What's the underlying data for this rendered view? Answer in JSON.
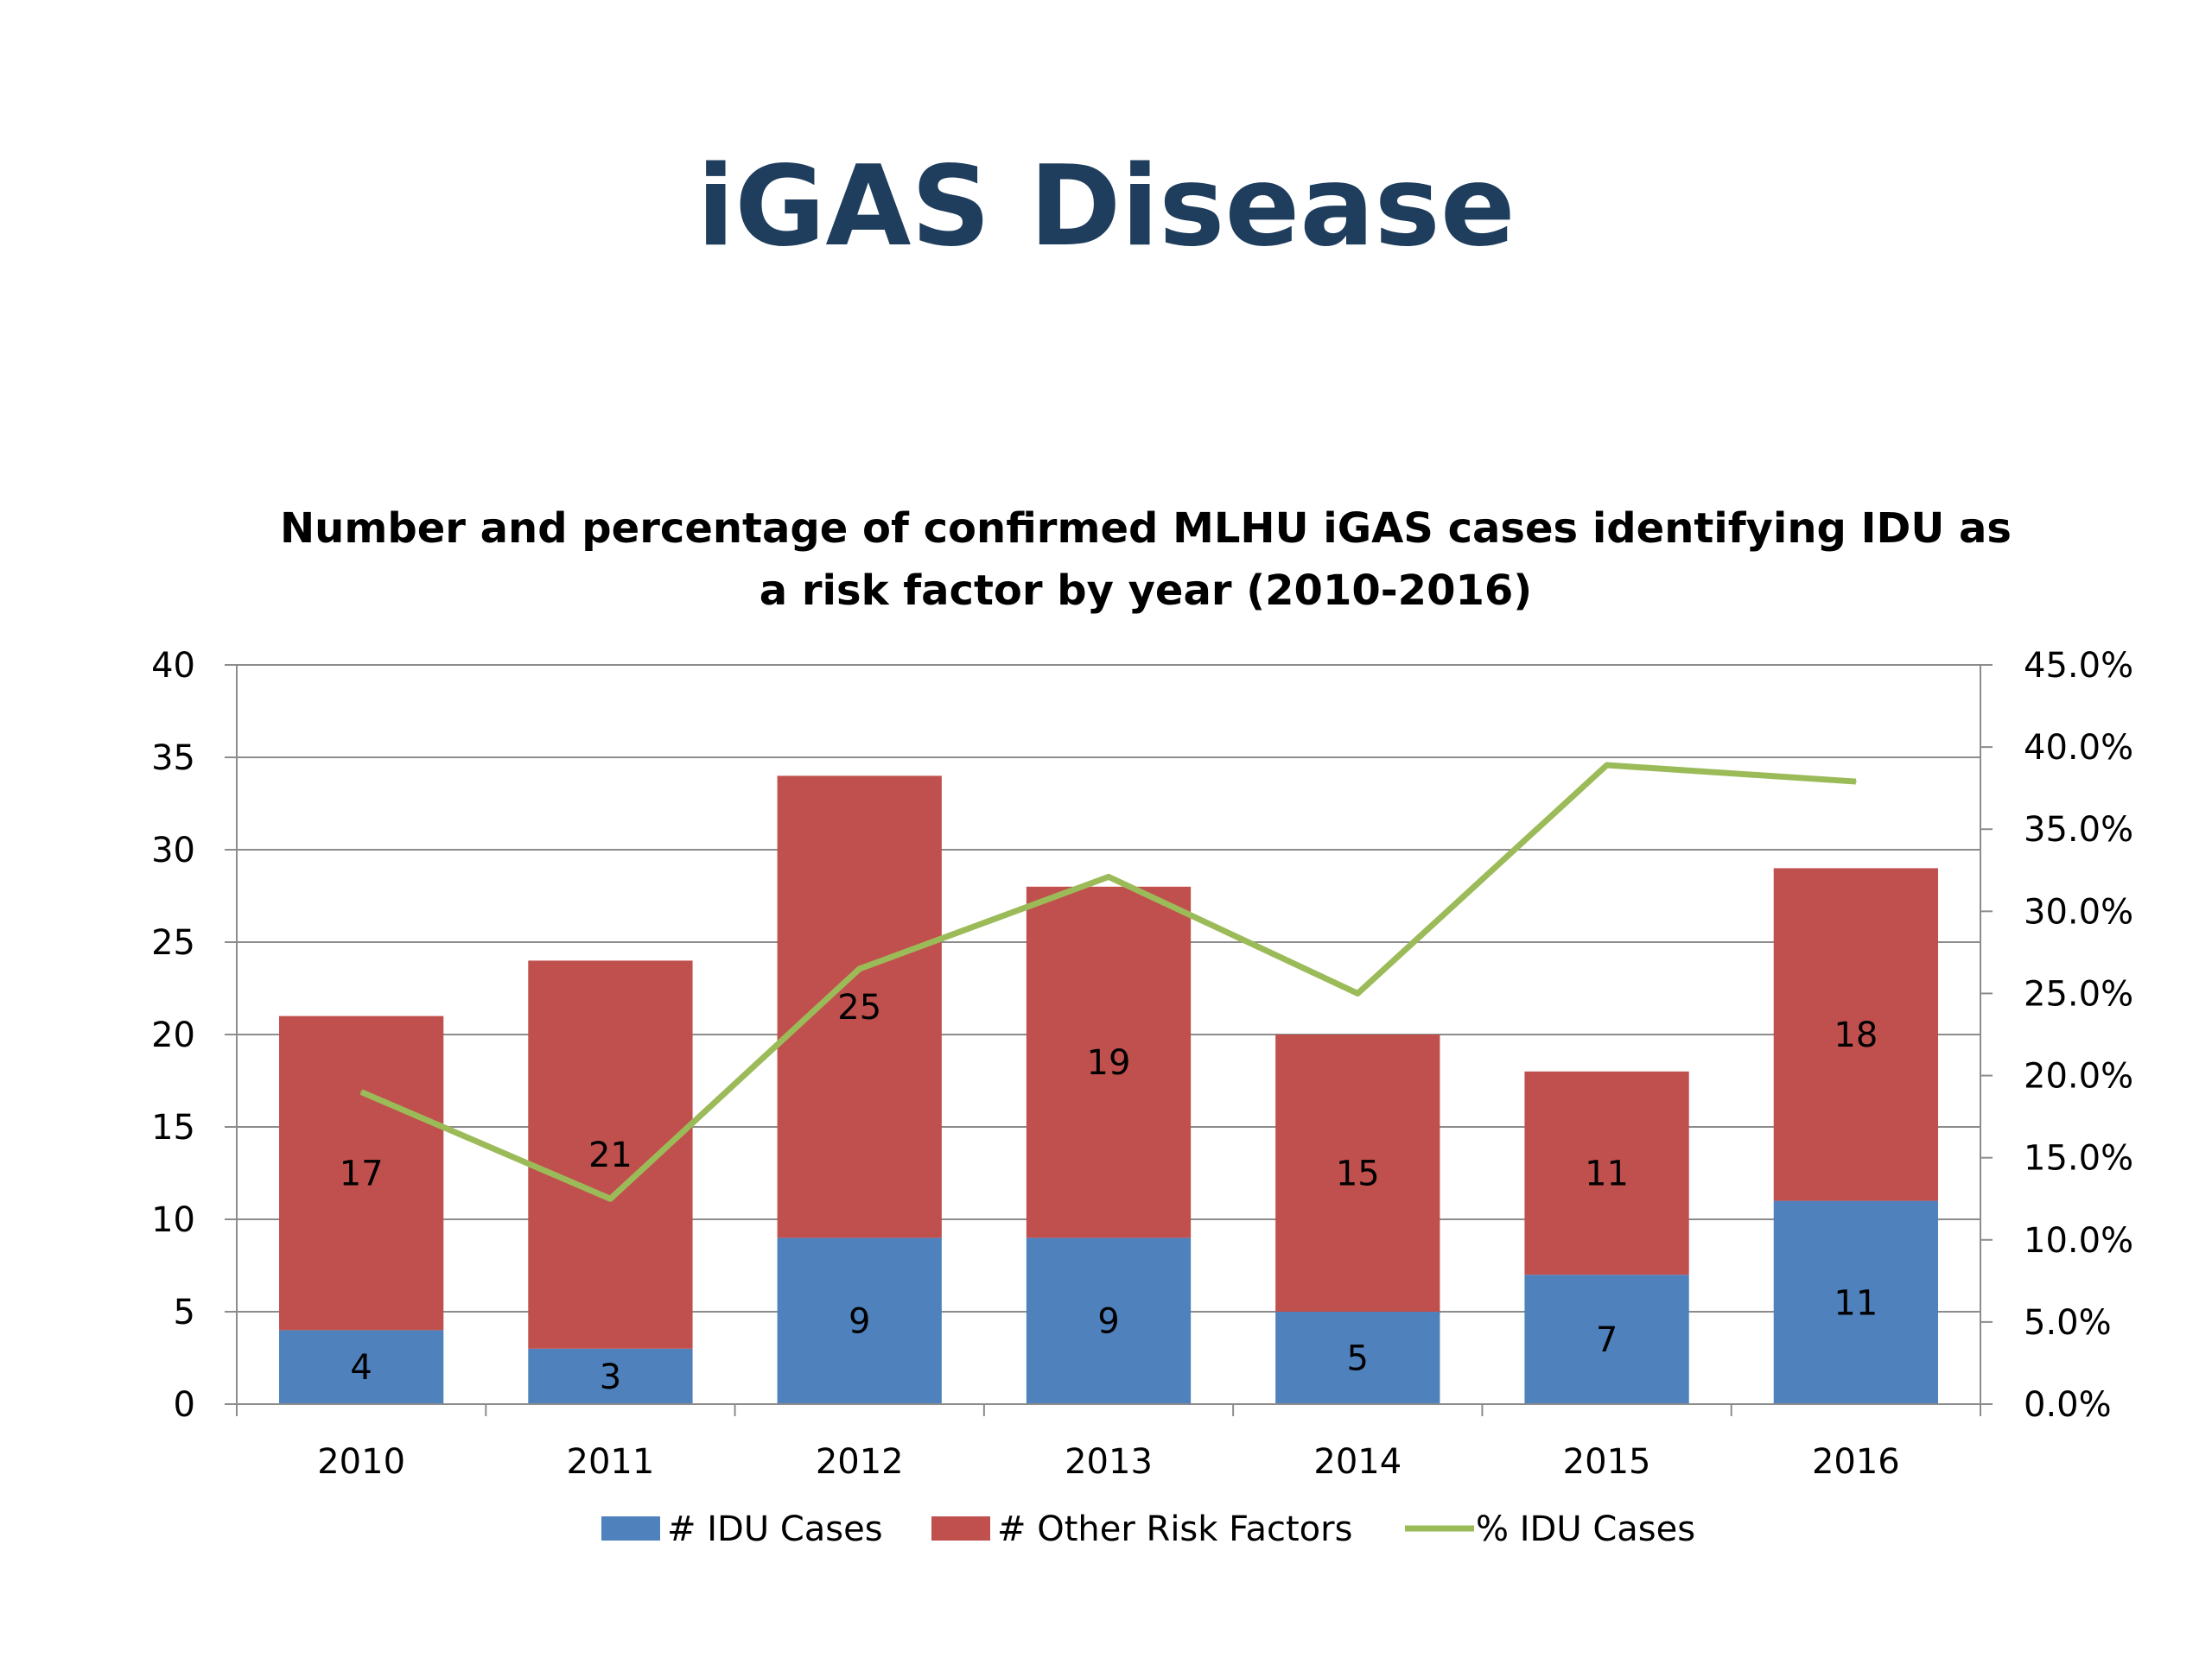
{
  "slide": {
    "title": "iGAS Disease"
  },
  "chart_data": {
    "type": "bar",
    "stacked": true,
    "title": "Number and percentage of confirmed MLHU iGAS cases identifying IDU as a risk factor by year (2010-2016)",
    "title_lines": [
      "Number and percentage of confirmed MLHU iGAS cases identifying IDU as",
      "a risk factor by year (2010-2016)"
    ],
    "categories": [
      "2010",
      "2011",
      "2012",
      "2013",
      "2014",
      "2015",
      "2016"
    ],
    "series": [
      {
        "name": "# IDU Cases",
        "type": "bar",
        "axis": "left",
        "color": "#4f81bd",
        "values": [
          4,
          3,
          9,
          9,
          5,
          7,
          11
        ]
      },
      {
        "name": "# Other Risk Factors",
        "type": "bar",
        "axis": "left",
        "color": "#c0504d",
        "values": [
          17,
          21,
          25,
          19,
          15,
          11,
          18
        ]
      },
      {
        "name": "% IDU Cases",
        "type": "line",
        "axis": "right",
        "color": "#9bbb59",
        "values": [
          19.0,
          12.5,
          26.5,
          32.1,
          25.0,
          38.9,
          37.9
        ]
      }
    ],
    "left_axis": {
      "ylim": [
        0,
        40
      ],
      "ticks": [
        0,
        5,
        10,
        15,
        20,
        25,
        30,
        35,
        40
      ],
      "tick_labels": [
        "0",
        "5",
        "10",
        "15",
        "20",
        "25",
        "30",
        "35",
        "40"
      ]
    },
    "right_axis": {
      "ylim": [
        0,
        45
      ],
      "ticks": [
        0,
        5,
        10,
        15,
        20,
        25,
        30,
        35,
        40,
        45
      ],
      "tick_labels": [
        "0.0%",
        "5.0%",
        "10.0%",
        "15.0%",
        "20.0%",
        "25.0%",
        "30.0%",
        "35.0%",
        "40.0%",
        "45.0%"
      ]
    },
    "grid": true,
    "legend": "bottom",
    "xlabel": "",
    "ylabel": ""
  }
}
